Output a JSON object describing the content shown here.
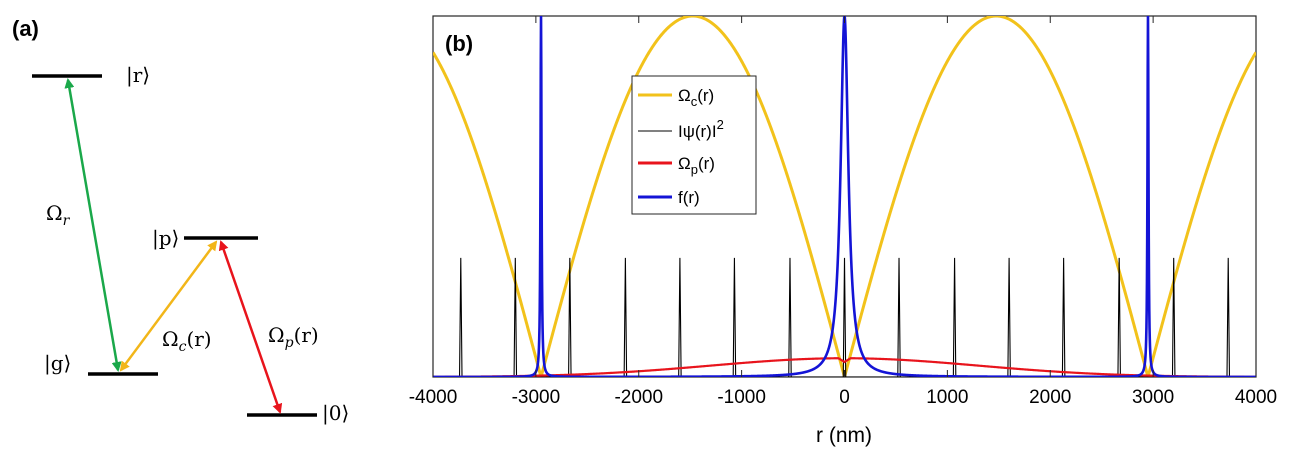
{
  "panel_a": {
    "label": "(a)",
    "levels": [
      {
        "name": "r",
        "text": "|r⟩"
      },
      {
        "name": "p",
        "text": "|p⟩"
      },
      {
        "name": "g",
        "text": "|g⟩"
      },
      {
        "name": "zero",
        "text": "|0⟩"
      }
    ],
    "transitions": [
      {
        "name": "omega-r",
        "symbol": "Ω",
        "sub": "r",
        "suffix": "",
        "color": "#1aa84a"
      },
      {
        "name": "omega-c",
        "symbol": "Ω",
        "sub": "c",
        "suffix": "(r)",
        "color": "#f2b619"
      },
      {
        "name": "omega-p",
        "symbol": "Ω",
        "sub": "p",
        "suffix": "(r)",
        "color": "#e8141c"
      }
    ]
  },
  "chart_data": {
    "type": "line",
    "panel_label": "(b)",
    "xlabel": "r (nm)",
    "ylabel": "",
    "xlim": [
      -4000,
      4000
    ],
    "ylim": [
      0,
      1
    ],
    "xticks": [
      "-4000",
      "-3000",
      "-2000",
      "-1000",
      "0",
      "1000",
      "2000",
      "3000",
      "4000"
    ],
    "grid": false,
    "legend_position": "upper-center",
    "series": [
      {
        "name": "omega_c",
        "label": "Ωc(r)",
        "label_main": "Ω",
        "label_sub": "c",
        "label_tail": "(r)",
        "color": "#f2c21b",
        "function": "abs(sin(pi*r/2950))",
        "peak": 1.0,
        "zeros": [
          -2950,
          0,
          2950
        ]
      },
      {
        "name": "psi",
        "label": "|ψ(r)|²",
        "label_main": "I",
        "label_sub": "",
        "label_tail": "ψ(r)I",
        "label_sup": "2",
        "color": "#000000",
        "peaks_x": [
          -3730,
          -3200,
          -2670,
          -2130,
          -1600,
          -1070,
          -530,
          0,
          530,
          1070,
          1600,
          2130,
          2670,
          3200,
          3730
        ],
        "peak_height": 0.33
      },
      {
        "name": "omega_p",
        "label": "Ωp(r)",
        "label_main": "Ω",
        "label_sub": "p",
        "label_tail": "(r)",
        "color": "#e8141c",
        "function": "gaussian",
        "peak": 0.052,
        "width_sigma": 1300
      },
      {
        "name": "f",
        "label": "f(r)",
        "label_main": "f(r)",
        "label_sub": "",
        "label_tail": "",
        "color": "#1414d6",
        "function": "lorentzian peaks",
        "peaks_x": [
          -2950,
          0,
          2950
        ],
        "peak_height": 1.0
      }
    ]
  }
}
